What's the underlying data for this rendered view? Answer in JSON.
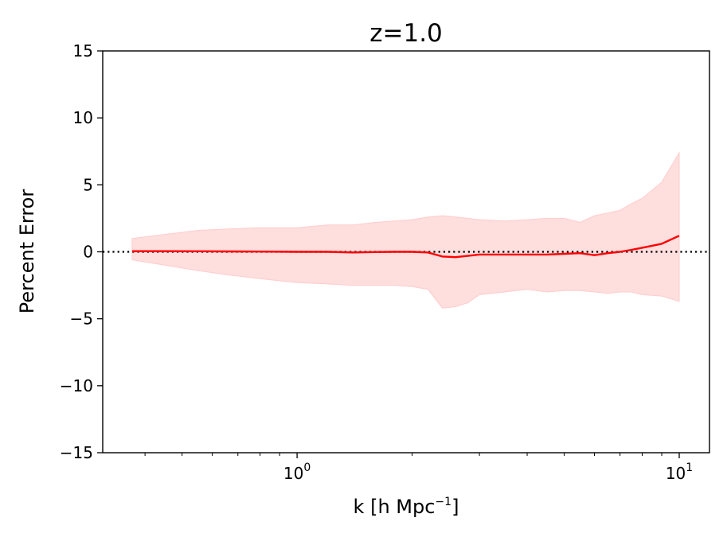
{
  "chart_data": {
    "type": "line",
    "title": "z=1.0",
    "xlabel": {
      "base": "k [h Mpc",
      "sup": "−1",
      "end": "]"
    },
    "ylabel": "Percent Error",
    "xscale": "log",
    "xlim": [
      0.31,
      12
    ],
    "ylim": [
      -15,
      15
    ],
    "xticks": [
      {
        "value": 1,
        "base": "10",
        "exp": "0"
      },
      {
        "value": 10,
        "base": "10",
        "exp": "1"
      }
    ],
    "yticks": [
      {
        "value": 15,
        "label": "15"
      },
      {
        "value": 10,
        "label": "10"
      },
      {
        "value": 5,
        "label": "5"
      },
      {
        "value": 0,
        "label": "0"
      },
      {
        "value": -5,
        "label": "−5"
      },
      {
        "value": -10,
        "label": "−10"
      },
      {
        "value": -15,
        "label": "−15"
      }
    ],
    "grid": false,
    "reference_line": {
      "y": 0,
      "style": "dotted",
      "color": "#000000"
    },
    "series": [
      {
        "color": "#ff0000",
        "band_color": "#ffcccc",
        "x": [
          0.37,
          0.45,
          0.55,
          0.65,
          0.8,
          1.0,
          1.2,
          1.4,
          1.6,
          1.8,
          2.0,
          2.2,
          2.4,
          2.6,
          2.8,
          3.0,
          3.5,
          4.0,
          4.5,
          5.0,
          5.5,
          6.0,
          6.5,
          7.0,
          7.5,
          8.0,
          9.0,
          10.0
        ],
        "y": [
          0.05,
          0.05,
          0.04,
          0.03,
          0.02,
          0.0,
          0.0,
          -0.05,
          -0.02,
          0.0,
          0.0,
          -0.05,
          -0.35,
          -0.4,
          -0.3,
          -0.2,
          -0.2,
          -0.2,
          -0.2,
          -0.15,
          -0.1,
          -0.25,
          -0.1,
          0.0,
          0.15,
          0.3,
          0.6,
          1.2
        ],
        "upper": [
          1.0,
          1.3,
          1.6,
          1.7,
          1.8,
          1.8,
          2.0,
          2.0,
          2.2,
          2.3,
          2.4,
          2.6,
          2.7,
          2.6,
          2.5,
          2.4,
          2.3,
          2.4,
          2.5,
          2.5,
          2.2,
          2.7,
          2.9,
          3.1,
          3.6,
          4.0,
          5.2,
          7.4
        ],
        "lower": [
          -0.6,
          -1.0,
          -1.4,
          -1.7,
          -2.0,
          -2.3,
          -2.4,
          -2.5,
          -2.5,
          -2.5,
          -2.6,
          -2.8,
          -4.2,
          -4.1,
          -3.8,
          -3.2,
          -3.0,
          -2.8,
          -3.0,
          -2.9,
          -2.9,
          -3.0,
          -3.1,
          -3.0,
          -3.0,
          -3.2,
          -3.3,
          -3.7
        ]
      }
    ]
  }
}
